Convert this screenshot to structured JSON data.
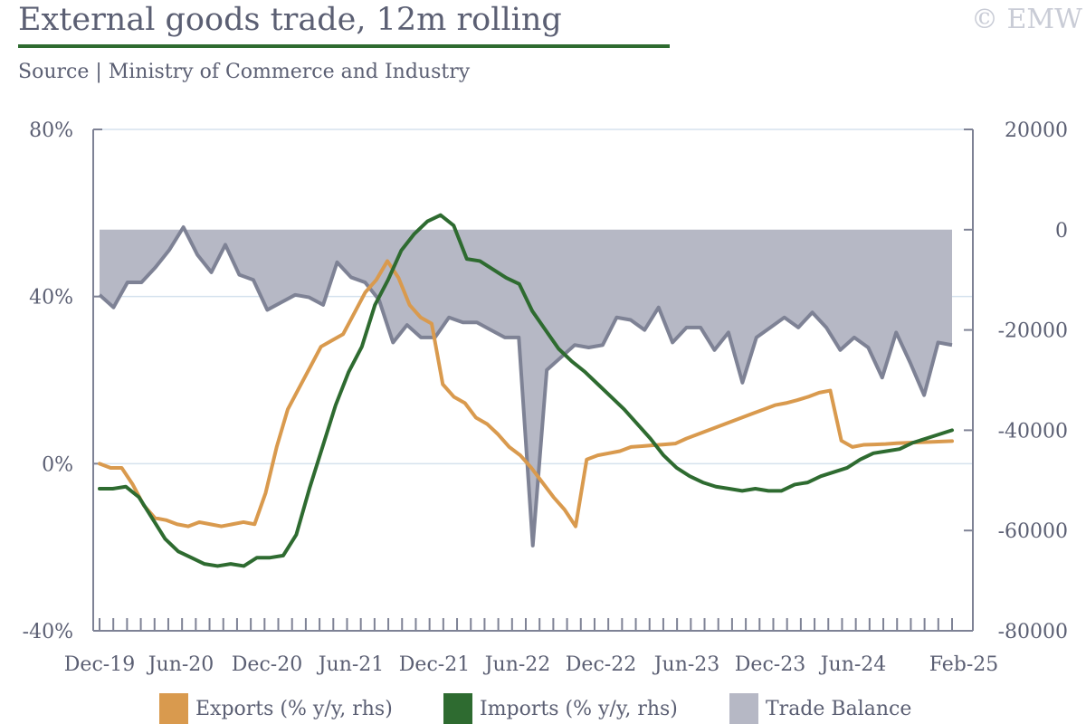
{
  "header": {
    "title": "External goods trade, 12m rolling",
    "watermark": "© EMW",
    "source": "Source | Ministry of Commerce and Industry"
  },
  "legend": {
    "items": [
      {
        "label": "Exports (% y/y, rhs)",
        "color": "#d99a4e"
      },
      {
        "label": "Imports (% y/y, rhs)",
        "color": "#2e6b30"
      },
      {
        "label": "Trade Balance",
        "color": "#b6b8c5"
      }
    ]
  },
  "chart_data": {
    "type": "line",
    "title": "External goods trade, 12m rolling",
    "x_tick_labels": [
      "Dec-19",
      "Jun-20",
      "Dec-20",
      "Jun-21",
      "Dec-21",
      "Jun-22",
      "Dec-22",
      "Jun-23",
      "Dec-23",
      "Jun-24",
      "Feb-25"
    ],
    "x_start": "Dec-19",
    "x_end": "Feb-25",
    "left_axis": {
      "ticks": [
        "80%",
        "40%",
        "0%",
        "-40%"
      ],
      "range": [
        -40,
        80
      ]
    },
    "right_axis": {
      "ticks": [
        "20000",
        "0",
        "-20000",
        "-40000",
        "-60000",
        "-80000"
      ],
      "range": [
        -80000,
        20000
      ]
    },
    "gridlines": [
      80,
      40,
      0
    ],
    "series": [
      {
        "name": "Exports (% y/y, rhs)",
        "axis": "left",
        "kind": "line",
        "color": "#d99a4e",
        "values": [
          0,
          -1,
          -1,
          -5,
          -10,
          -13,
          -13.5,
          -14.5,
          -15,
          -14,
          -14.5,
          -15,
          -14.5,
          -14,
          -14.5,
          -7,
          4,
          13,
          18,
          23,
          28,
          29.5,
          31,
          36,
          41,
          44,
          48.5,
          44.5,
          38,
          35,
          33.5,
          19,
          16,
          14.5,
          11,
          9.5,
          7,
          4,
          2,
          -1,
          -4.5,
          -8,
          -11,
          -15,
          1,
          2,
          2.5,
          3,
          4,
          4.2,
          4.4,
          4.6,
          4.8,
          6,
          7,
          8,
          9,
          10,
          11,
          12,
          13,
          14,
          14.5,
          15.2,
          16,
          17,
          17.5,
          5.5,
          4,
          4.5,
          4.6,
          4.7,
          4.9,
          5,
          5.1,
          5.2,
          5.3,
          5.4
        ]
      },
      {
        "name": "Imports (% y/y, rhs)",
        "axis": "left",
        "kind": "line",
        "color": "#2e6b30",
        "values": [
          -6,
          -6,
          -5.5,
          -8,
          -13,
          -18,
          -21,
          -22.5,
          -24,
          -24.5,
          -24,
          -24.5,
          -22.5,
          -22.5,
          -22,
          -17,
          -6,
          4,
          14,
          22,
          28,
          38,
          44,
          51,
          55,
          58,
          59.5,
          57,
          49,
          48.5,
          46.5,
          44.5,
          43,
          36.5,
          32,
          27.5,
          24.5,
          22,
          19,
          16,
          13,
          9.5,
          6,
          2,
          -1,
          -3,
          -4.5,
          -5.5,
          -6,
          -6.5,
          -6,
          -6.5,
          -6.5,
          -5,
          -4.5,
          -3,
          -2,
          -1,
          1,
          2.5,
          3,
          3.5,
          5,
          6,
          7,
          8
        ]
      },
      {
        "name": "Trade Balance",
        "axis": "right",
        "kind": "area",
        "color": "#b6b8c5",
        "line_color": "#7e8295",
        "values": [
          -13000,
          -15500,
          -10500,
          -10500,
          -7500,
          -4000,
          500,
          -5000,
          -8500,
          -3000,
          -9000,
          -10000,
          -16000,
          -14500,
          -13000,
          -13500,
          -15000,
          -6500,
          -9500,
          -10500,
          -14000,
          -22500,
          -19000,
          -21500,
          -21500,
          -17500,
          -18500,
          -18500,
          -20000,
          -21500,
          -21500,
          -63000,
          -28000,
          -25500,
          -23000,
          -23500,
          -23000,
          -17500,
          -18000,
          -20000,
          -15500,
          -22500,
          -19500,
          -19500,
          -24000,
          -20500,
          -30500,
          -21500,
          -19500,
          -17500,
          -19500,
          -16500,
          -19500,
          -24000,
          -21500,
          -23500,
          -29500,
          -20500,
          -26500,
          -33000,
          -22500,
          -23000
        ]
      }
    ],
    "fill_baseline": 0
  }
}
